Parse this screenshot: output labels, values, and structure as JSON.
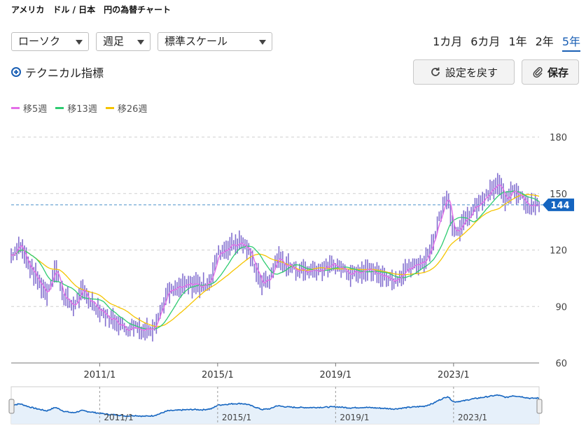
{
  "header": {
    "title": "アメリカ　ドル / 日本　円の為替チャート"
  },
  "controls": {
    "chart_type": "ローソク",
    "period": "週足",
    "scale": "標準スケール",
    "technical": "テクニカル指標",
    "reset_label": "設定を戻す",
    "save_label": "保存"
  },
  "ranges": [
    {
      "label": "1カ月",
      "active": false
    },
    {
      "label": "6カ月",
      "active": false
    },
    {
      "label": "1年",
      "active": false
    },
    {
      "label": "2年",
      "active": false
    },
    {
      "label": "5年",
      "active": true
    }
  ],
  "legend": [
    {
      "label": "移5週",
      "color": "#e46ee8"
    },
    {
      "label": "移13週",
      "color": "#2ecc71"
    },
    {
      "label": "移26週",
      "color": "#f5c400"
    }
  ],
  "colors": {
    "price": "#5a3fc0",
    "accent": "#1a5fb4",
    "navigator": "#1565c0"
  },
  "chart_data": {
    "type": "line",
    "ylim": [
      60,
      180
    ],
    "yticks": [
      60,
      90,
      120,
      150,
      180
    ],
    "xtick_labels": [
      "2011/1",
      "2015/1",
      "2019/1",
      "2023/1"
    ],
    "xtick_years": [
      2011,
      2015,
      2019,
      2023
    ],
    "x_range": [
      2008.0,
      2025.9
    ],
    "current_value": 144,
    "current_label": "144",
    "series": [
      {
        "x": [
          2008.0,
          2008.3,
          2008.6,
          2008.9,
          2009.2,
          2009.5,
          2009.8,
          2010.1,
          2010.4,
          2010.7,
          2011.0,
          2011.3,
          2011.6,
          2011.9,
          2012.2,
          2012.5,
          2012.8,
          2013.0,
          2013.3,
          2013.6,
          2013.9,
          2014.2,
          2014.5,
          2014.8,
          2015.0,
          2015.3,
          2015.5,
          2015.8,
          2016.0,
          2016.3,
          2016.5,
          2016.8,
          2017.0,
          2017.3,
          2017.6,
          2018.0,
          2018.5,
          2019.0,
          2019.5,
          2020.0,
          2020.5,
          2021.0,
          2021.5,
          2022.0,
          2022.3,
          2022.5,
          2022.8,
          2023.0,
          2023.3,
          2023.6,
          2023.9,
          2024.2,
          2024.5,
          2024.8,
          2025.0,
          2025.3,
          2025.6,
          2025.9
        ],
        "y": [
          117,
          123,
          112,
          104,
          97,
          110,
          95,
          90,
          98,
          93,
          88,
          84,
          82,
          78,
          80,
          77,
          79,
          85,
          97,
          99,
          101,
          102,
          101,
          105,
          118,
          121,
          123,
          124,
          121,
          110,
          102,
          105,
          116,
          112,
          110,
          109,
          110,
          112,
          108,
          110,
          107,
          104,
          110,
          114,
          124,
          136,
          150,
          130,
          133,
          140,
          145,
          150,
          155,
          146,
          153,
          149,
          143,
          144
        ]
      }
    ]
  }
}
